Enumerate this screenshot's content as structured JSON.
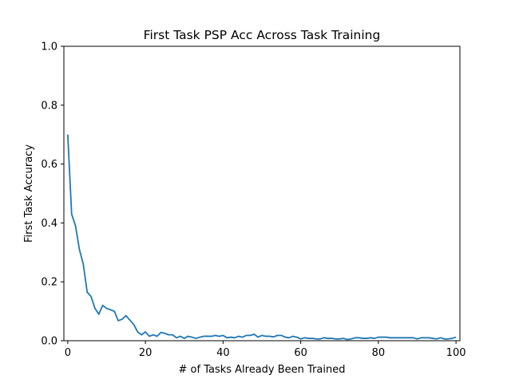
{
  "chart_data": {
    "type": "line",
    "title": "First Task PSP Acc Across Task Training",
    "xlabel": "# of Tasks Already Been Trained",
    "ylabel": "First Task Accuracy",
    "xlim": [
      -1,
      101
    ],
    "ylim": [
      0,
      1
    ],
    "xticks": [
      0,
      20,
      40,
      60,
      80,
      100
    ],
    "xtick_labels": [
      "0",
      "20",
      "40",
      "60",
      "80",
      "100"
    ],
    "yticks": [
      0,
      0.2,
      0.4,
      0.6,
      0.8,
      1.0
    ],
    "ytick_labels": [
      "0.0",
      "0.2",
      "0.4",
      "0.6",
      "0.8",
      "1.0"
    ],
    "grid": false,
    "colors": {
      "line": "#1f77b4",
      "axes": "#000000"
    },
    "series": [
      {
        "x": [
          0,
          1,
          2,
          3,
          4,
          5,
          6,
          7,
          8,
          9,
          10,
          11,
          12,
          13,
          14,
          15,
          16,
          17,
          18,
          19,
          20,
          21,
          22,
          23,
          24,
          25,
          26,
          27,
          28,
          29,
          30,
          31,
          32,
          33,
          34,
          35,
          36,
          37,
          38,
          39,
          40,
          41,
          42,
          43,
          44,
          45,
          46,
          47,
          48,
          49,
          50,
          51,
          52,
          53,
          54,
          55,
          56,
          57,
          58,
          59,
          60,
          61,
          62,
          63,
          64,
          65,
          66,
          67,
          68,
          69,
          70,
          71,
          72,
          73,
          74,
          75,
          76,
          77,
          78,
          79,
          80,
          81,
          82,
          83,
          84,
          85,
          86,
          87,
          88,
          89,
          90,
          91,
          92,
          93,
          94,
          95,
          96,
          97,
          98,
          99,
          100
        ],
        "values": [
          0.7,
          0.43,
          0.39,
          0.31,
          0.26,
          0.165,
          0.15,
          0.11,
          0.09,
          0.12,
          0.11,
          0.105,
          0.1,
          0.068,
          0.073,
          0.085,
          0.07,
          0.055,
          0.03,
          0.02,
          0.03,
          0.015,
          0.02,
          0.015,
          0.028,
          0.025,
          0.02,
          0.02,
          0.01,
          0.015,
          0.008,
          0.015,
          0.012,
          0.008,
          0.012,
          0.015,
          0.015,
          0.015,
          0.018,
          0.015,
          0.018,
          0.01,
          0.012,
          0.01,
          0.015,
          0.012,
          0.018,
          0.018,
          0.022,
          0.012,
          0.018,
          0.015,
          0.015,
          0.013,
          0.018,
          0.018,
          0.012,
          0.01,
          0.015,
          0.012,
          0.006,
          0.01,
          0.008,
          0.008,
          0.006,
          0.006,
          0.01,
          0.008,
          0.008,
          0.006,
          0.006,
          0.008,
          0.004,
          0.006,
          0.01,
          0.01,
          0.008,
          0.008,
          0.01,
          0.008,
          0.012,
          0.012,
          0.012,
          0.01,
          0.01,
          0.01,
          0.01,
          0.01,
          0.01,
          0.01,
          0.006,
          0.01,
          0.01,
          0.01,
          0.008,
          0.006,
          0.01,
          0.006,
          0.006,
          0.008,
          0.012
        ]
      }
    ]
  }
}
